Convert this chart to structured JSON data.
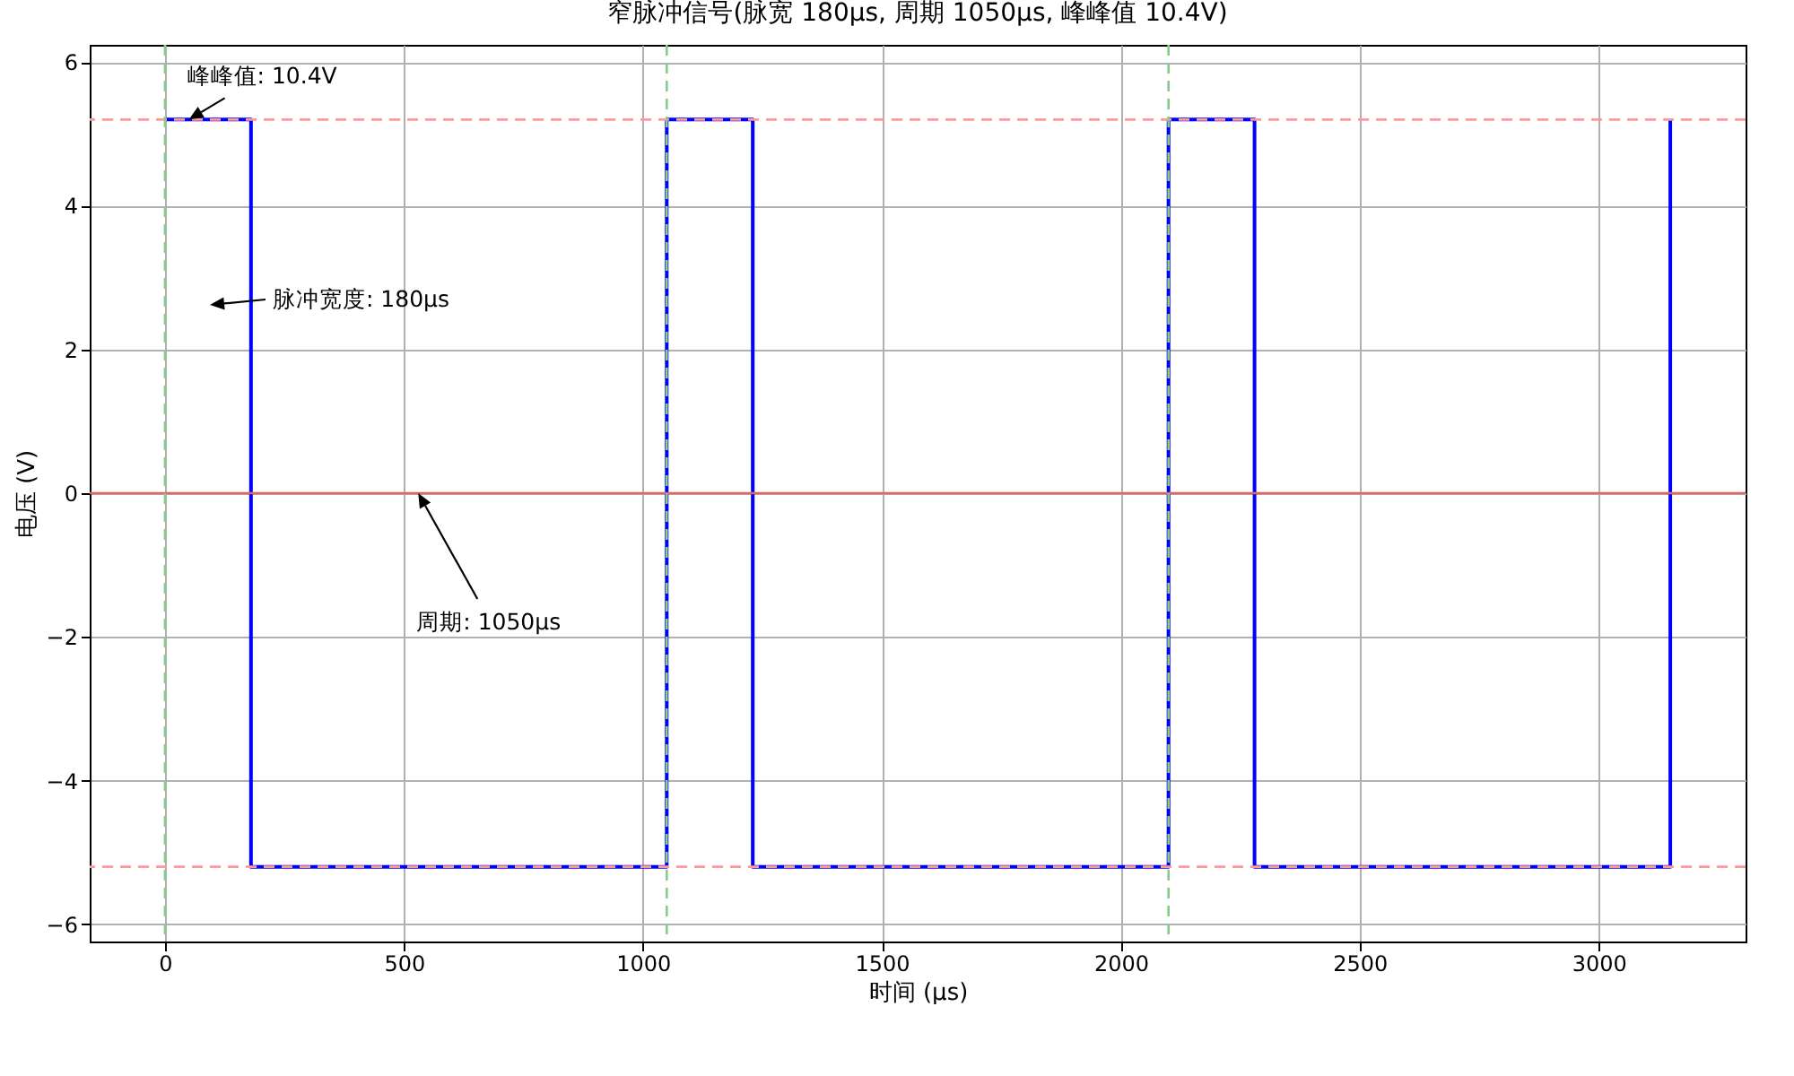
{
  "chart_data": {
    "type": "step",
    "title": "窄脉冲信号(脉宽 180μs, 周期 1050μs, 峰峰值 10.4V)",
    "xlabel": "时间 (μs)",
    "ylabel": "电压 (V)",
    "x": [
      0,
      180,
      1050,
      1230,
      2100,
      2280,
      3150
    ],
    "series": [
      {
        "color": "#0000ff",
        "values": [
          5.2,
          -5.2,
          5.2,
          -5.2,
          5.2,
          -5.2,
          5.2
        ]
      }
    ],
    "xlim": [
      -157.5,
      3307.5
    ],
    "xticks": [
      0,
      500,
      {
        "value": 1000,
        "label": "1000"
      },
      {
        "value": 1500,
        "label": "1500"
      },
      {
        "value": 2000,
        "label": "2000"
      },
      {
        "value": 2500,
        "label": "2500"
      },
      {
        "value": 3000,
        "label": "3000"
      }
    ],
    "ylim": [
      -6.24,
      6.24
    ],
    "yticks": [
      -6,
      -4,
      -2,
      0,
      2,
      4,
      6
    ],
    "grid": true,
    "line_style": "solid",
    "marker": "none",
    "ref_lines": [
      {
        "axis": "y",
        "value": 5.2,
        "color": "#ff9999",
        "line_style": "dashed"
      },
      {
        "axis": "y",
        "value": -5.2,
        "color": "#ff9999",
        "line_style": "dashed"
      },
      {
        "axis": "y",
        "value": 0,
        "color": "#e06666",
        "line_style": "solid"
      },
      {
        "axis": "x",
        "value": 0,
        "color": "#88cc88",
        "line_style": "dashed"
      },
      {
        "axis": "x",
        "value": 1050,
        "color": "#88cc88",
        "line_style": "dashed"
      },
      {
        "axis": "x",
        "value": 2100,
        "color": "#88cc88",
        "line_style": "dashed"
      }
    ],
    "annotations": [
      {
        "text": "峰峰值: 10.4V",
        "x": 50,
        "y": 5.2
      },
      "脉冲宽度: 180μs",
      {
        "text": "周期: 1050μs",
        "x": 530,
        "y": 0
      }
    ]
  }
}
